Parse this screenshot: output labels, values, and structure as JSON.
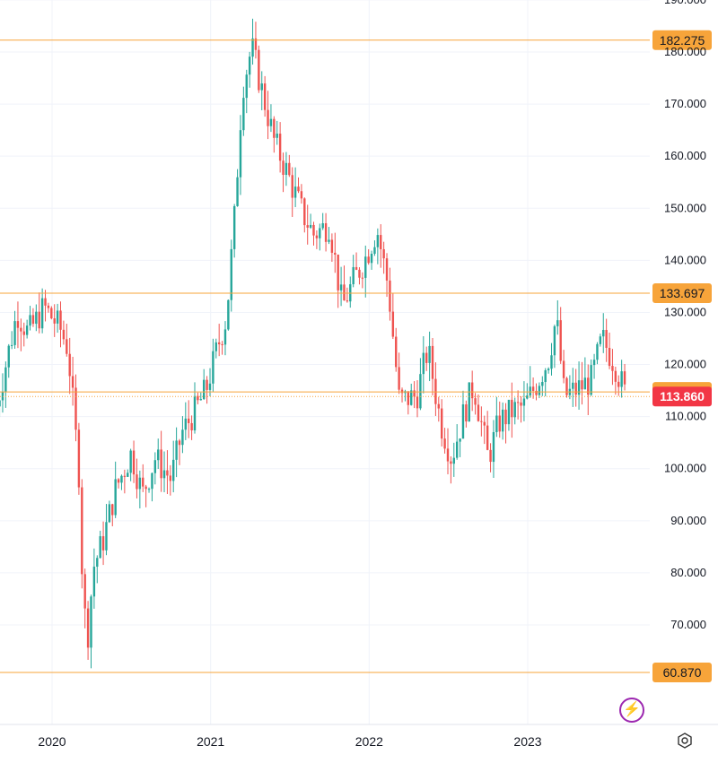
{
  "chart_data": {
    "type": "candlestick",
    "x_labels": [
      "2020",
      "2021",
      "2022",
      "2023"
    ],
    "y_ticks": [
      "190.000",
      "180.000",
      "170.000",
      "160.000",
      "150.000",
      "140.000",
      "130.000",
      "120.000",
      "110.000",
      "100.000",
      "90.000",
      "80.000",
      "70.000"
    ],
    "ylim": [
      57,
      192
    ],
    "grid": true,
    "colors": {
      "up": "#26a69a",
      "down": "#ef5350",
      "level": "#f7a43a",
      "current": "#f23645"
    },
    "levels": [
      {
        "value": 182.275,
        "label": "182.275"
      },
      {
        "value": 133.697,
        "label": "133.697"
      },
      {
        "value": 114.739,
        "label": "114.739"
      },
      {
        "value": 60.87,
        "label": "60.870"
      }
    ],
    "current_price": {
      "value": 113.86,
      "label": "113.860"
    },
    "trend": [
      [
        2019.65,
        112
      ],
      [
        2019.78,
        130
      ],
      [
        2019.85,
        126
      ],
      [
        2019.95,
        131
      ],
      [
        2020.05,
        127
      ],
      [
        2020.1,
        123
      ],
      [
        2020.13,
        113
      ],
      [
        2020.17,
        99
      ],
      [
        2020.19,
        80
      ],
      [
        2020.22,
        66
      ],
      [
        2020.26,
        81
      ],
      [
        2020.32,
        86
      ],
      [
        2020.4,
        96
      ],
      [
        2020.5,
        103
      ],
      [
        2020.57,
        95
      ],
      [
        2020.65,
        102
      ],
      [
        2020.75,
        98
      ],
      [
        2020.82,
        107
      ],
      [
        2020.9,
        111
      ],
      [
        2020.97,
        115
      ],
      [
        2021.05,
        124
      ],
      [
        2021.1,
        129
      ],
      [
        2021.15,
        148
      ],
      [
        2021.2,
        173
      ],
      [
        2021.26,
        181
      ],
      [
        2021.32,
        173
      ],
      [
        2021.4,
        163
      ],
      [
        2021.48,
        157
      ],
      [
        2021.58,
        149
      ],
      [
        2021.65,
        145
      ],
      [
        2021.75,
        147
      ],
      [
        2021.83,
        131
      ],
      [
        2021.9,
        136
      ],
      [
        2021.97,
        140
      ],
      [
        2022.05,
        146
      ],
      [
        2022.12,
        135
      ],
      [
        2022.19,
        113
      ],
      [
        2022.3,
        114
      ],
      [
        2022.37,
        123
      ],
      [
        2022.45,
        109
      ],
      [
        2022.52,
        102
      ],
      [
        2022.6,
        111
      ],
      [
        2022.66,
        116
      ],
      [
        2022.75,
        102
      ],
      [
        2022.82,
        109
      ],
      [
        2022.9,
        111
      ],
      [
        2022.98,
        112
      ],
      [
        2023.05,
        116
      ],
      [
        2023.13,
        121
      ],
      [
        2023.18,
        129
      ],
      [
        2023.23,
        114
      ],
      [
        2023.3,
        115
      ],
      [
        2023.4,
        117
      ],
      [
        2023.47,
        125
      ],
      [
        2023.55,
        120
      ],
      [
        2023.62,
        113.86
      ]
    ]
  },
  "ui": {
    "bolt_icon_glyph": "⚡",
    "gear_icon_glyph": "⬡"
  }
}
